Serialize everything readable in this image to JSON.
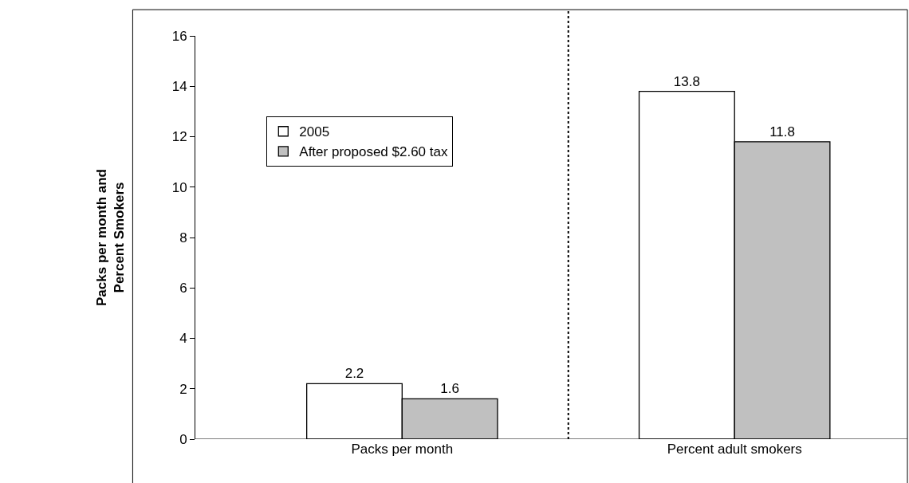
{
  "chart_data": {
    "type": "bar",
    "ylabel": "Packs per month and\nPercent Smokers",
    "categories": [
      "Packs per month",
      "Percent adult smokers"
    ],
    "series": [
      {
        "name": "2005",
        "color": "#ffffff",
        "values": [
          2.2,
          13.8
        ]
      },
      {
        "name": "After proposed $2.60 tax",
        "color": "#c0c0c0",
        "values": [
          1.6,
          11.8
        ]
      }
    ],
    "ylim": [
      0,
      16
    ],
    "yticks": [
      0,
      2,
      4,
      6,
      8,
      10,
      12,
      14,
      16
    ],
    "grid": false,
    "legend": "top left",
    "data_labels": true
  }
}
